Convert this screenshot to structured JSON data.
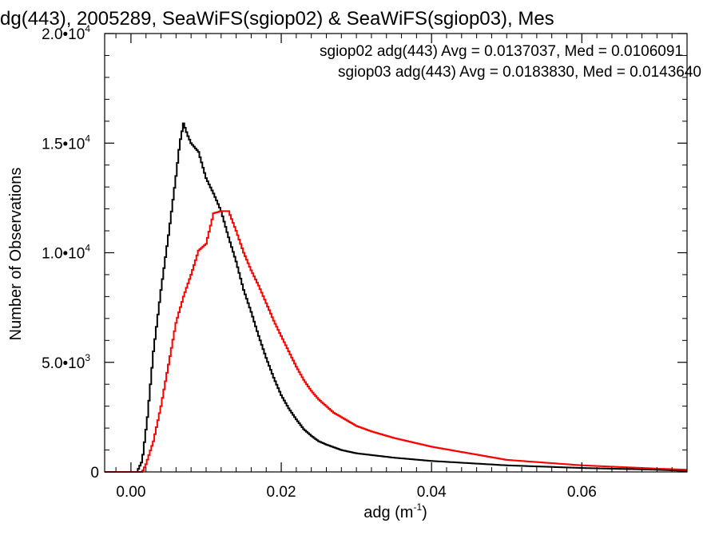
{
  "chart_data": {
    "type": "line",
    "title": "dg(443), 2005289, SeaWiFS(sgiop02) & SeaWiFS(sgiop03), Mes",
    "xlabel": "adg (m",
    "xlabel_sup": "-1",
    "xlabel_tail": ")",
    "ylabel": "Number of Observations",
    "xlim": [
      -0.0035,
      0.074
    ],
    "ylim": [
      0,
      20000
    ],
    "x_ticks": [
      {
        "value": 0.0,
        "label": "0.00"
      },
      {
        "value": 0.02,
        "label": "0.02"
      },
      {
        "value": 0.04,
        "label": "0.04"
      },
      {
        "value": 0.06,
        "label": "0.06"
      }
    ],
    "y_ticks": [
      {
        "value": 0,
        "label": "0",
        "exp": ""
      },
      {
        "value": 5000,
        "label": "5.0•10",
        "exp": "3"
      },
      {
        "value": 10000,
        "label": "1.0•10",
        "exp": "4"
      },
      {
        "value": 15000,
        "label": "1.5•10",
        "exp": "4"
      },
      {
        "value": 20000,
        "label": "2.0•10",
        "exp": "4"
      }
    ],
    "legend_position": "top-right",
    "series": [
      {
        "name": "sgiop02 adg(443) Avg = 0.0137037, Med = 0.0106091",
        "color": "#000000",
        "x": [
          -0.0035,
          0.0008,
          0.0015,
          0.0022,
          0.003,
          0.004,
          0.005,
          0.006,
          0.0065,
          0.007,
          0.0075,
          0.008,
          0.009,
          0.01,
          0.011,
          0.012,
          0.013,
          0.014,
          0.015,
          0.016,
          0.017,
          0.018,
          0.019,
          0.02,
          0.021,
          0.022,
          0.023,
          0.024,
          0.025,
          0.026,
          0.028,
          0.03,
          0.035,
          0.04,
          0.05,
          0.06,
          0.07,
          0.074
        ],
        "y": [
          0,
          0,
          500,
          2500,
          5500,
          8300,
          10800,
          13500,
          15000,
          15900,
          15400,
          15000,
          14600,
          13400,
          12700,
          11900,
          10700,
          9600,
          8300,
          7300,
          6200,
          5200,
          4300,
          3500,
          2900,
          2400,
          1950,
          1650,
          1400,
          1250,
          1000,
          850,
          650,
          500,
          300,
          180,
          100,
          50
        ]
      },
      {
        "name": "sgiop03 adg(443) Avg = 0.0183830, Med = 0.0143640",
        "color": "#ff0000",
        "x": [
          -0.0035,
          0.0015,
          0.002,
          0.003,
          0.004,
          0.005,
          0.006,
          0.007,
          0.008,
          0.009,
          0.01,
          0.011,
          0.012,
          0.013,
          0.014,
          0.015,
          0.016,
          0.017,
          0.018,
          0.019,
          0.02,
          0.021,
          0.022,
          0.023,
          0.024,
          0.025,
          0.026,
          0.027,
          0.028,
          0.03,
          0.032,
          0.035,
          0.04,
          0.045,
          0.05,
          0.06,
          0.07,
          0.074
        ],
        "y": [
          0,
          0,
          350,
          1400,
          3000,
          4900,
          6800,
          8000,
          9000,
          10100,
          10400,
          11800,
          11900,
          11900,
          11000,
          10000,
          9200,
          8500,
          7700,
          6900,
          6200,
          5500,
          4800,
          4200,
          3700,
          3300,
          3000,
          2700,
          2500,
          2100,
          1850,
          1550,
          1150,
          850,
          550,
          300,
          150,
          100
        ]
      }
    ]
  }
}
